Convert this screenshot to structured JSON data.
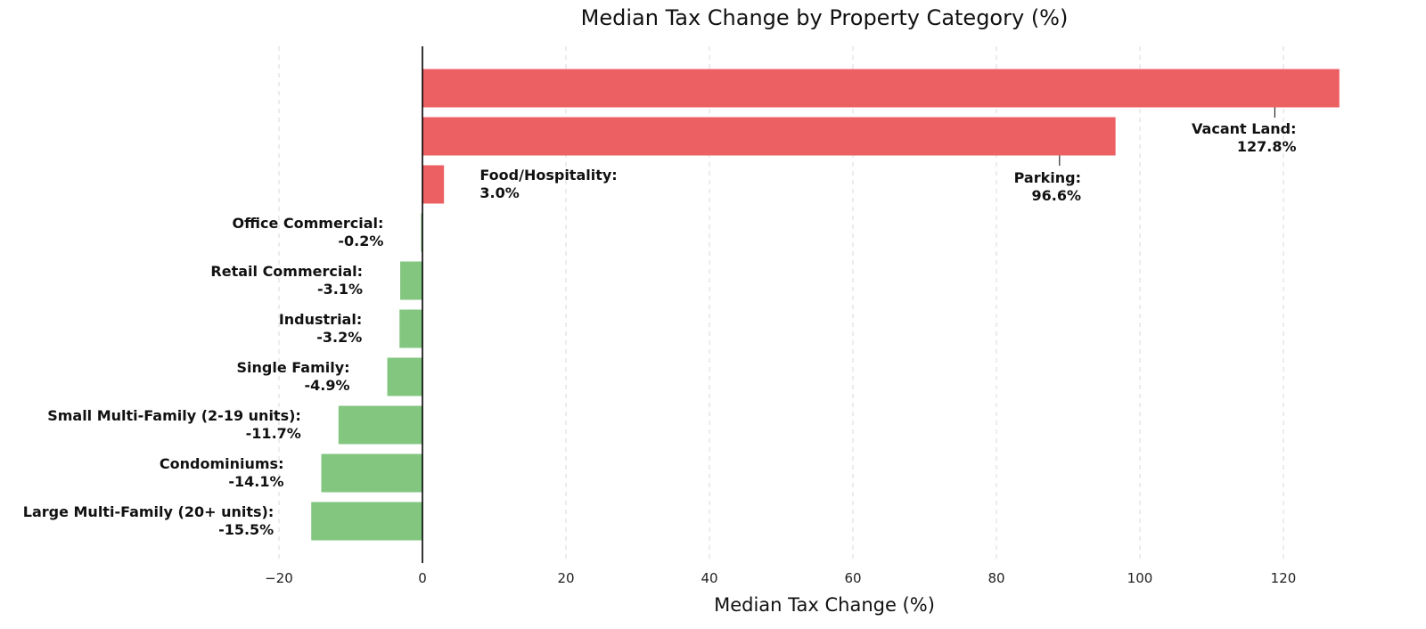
{
  "chart_data": {
    "type": "bar",
    "orientation": "horizontal",
    "title": "Median Tax Change by Property Category (%)",
    "xlabel": "Median Tax Change (%)",
    "ylabel": "",
    "xlim": [
      -25,
      130
    ],
    "xticks": [
      -20,
      0,
      20,
      40,
      60,
      80,
      100,
      120
    ],
    "xtick_labels": [
      "−20",
      "0",
      "20",
      "40",
      "60",
      "80",
      "100",
      "120"
    ],
    "grid": "vertical dashed",
    "colors": {
      "positive": "#ec5f62",
      "negative": "#82c680",
      "zero_line": "#000000"
    },
    "categories": [
      "Vacant Land",
      "Parking",
      "Food/Hospitality",
      "Office Commercial",
      "Retail Commercial",
      "Industrial",
      "Single Family",
      "Small Multi-Family (2-19 units)",
      "Condominiums",
      "Large Multi-Family (20+ units)"
    ],
    "values": [
      127.8,
      96.6,
      3.0,
      -0.2,
      -3.1,
      -3.2,
      -4.9,
      -11.7,
      -14.1,
      -15.5
    ],
    "data_labels": [
      [
        "Vacant Land:",
        "127.8%"
      ],
      [
        "Parking:",
        "96.6%"
      ],
      [
        "Food/Hospitality:",
        "3.0%"
      ],
      [
        "Office Commercial:",
        "-0.2%"
      ],
      [
        "Retail Commercial:",
        "-3.1%"
      ],
      [
        "Industrial:",
        "-3.2%"
      ],
      [
        "Single Family:",
        "-4.9%"
      ],
      [
        "Small Multi-Family (2-19 units):",
        "-11.7%"
      ],
      [
        "Condominiums:",
        "-14.1%"
      ],
      [
        "Large Multi-Family (20+ units):",
        "-15.5%"
      ]
    ]
  }
}
